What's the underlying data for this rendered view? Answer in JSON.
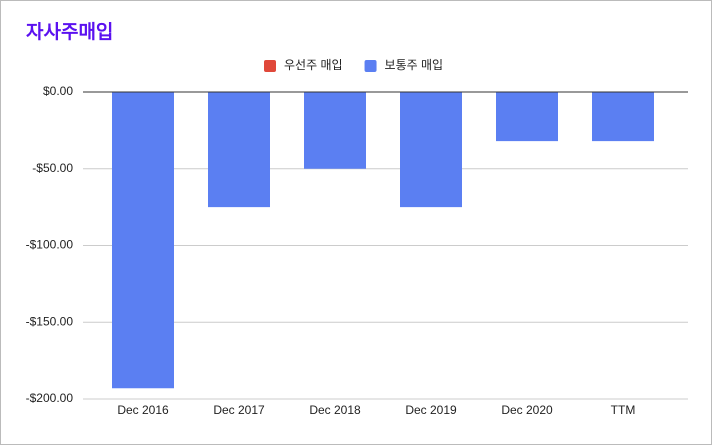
{
  "chart_data": {
    "type": "bar",
    "title": "자사주매입",
    "categories": [
      "Dec 2016",
      "Dec 2017",
      "Dec 2018",
      "Dec 2019",
      "Dec 2020",
      "TTM"
    ],
    "series": [
      {
        "name": "우선주 매입",
        "color": "#e0483a",
        "values": [
          0,
          0,
          0,
          0,
          0,
          0
        ]
      },
      {
        "name": "보통주 매입",
        "color": "#5b7ff2",
        "values": [
          -193,
          -75,
          -50,
          -75,
          -32,
          -32
        ]
      }
    ],
    "ylim": [
      -200,
      0
    ],
    "yticks": [
      {
        "value": 0,
        "label": "$0.00"
      },
      {
        "value": -50,
        "label": "-$50.00"
      },
      {
        "value": -100,
        "label": "-$100.00"
      },
      {
        "value": -150,
        "label": "-$150.00"
      },
      {
        "value": -200,
        "label": "-$200.00"
      }
    ],
    "grid": true,
    "stacked": true,
    "legend": "top"
  }
}
